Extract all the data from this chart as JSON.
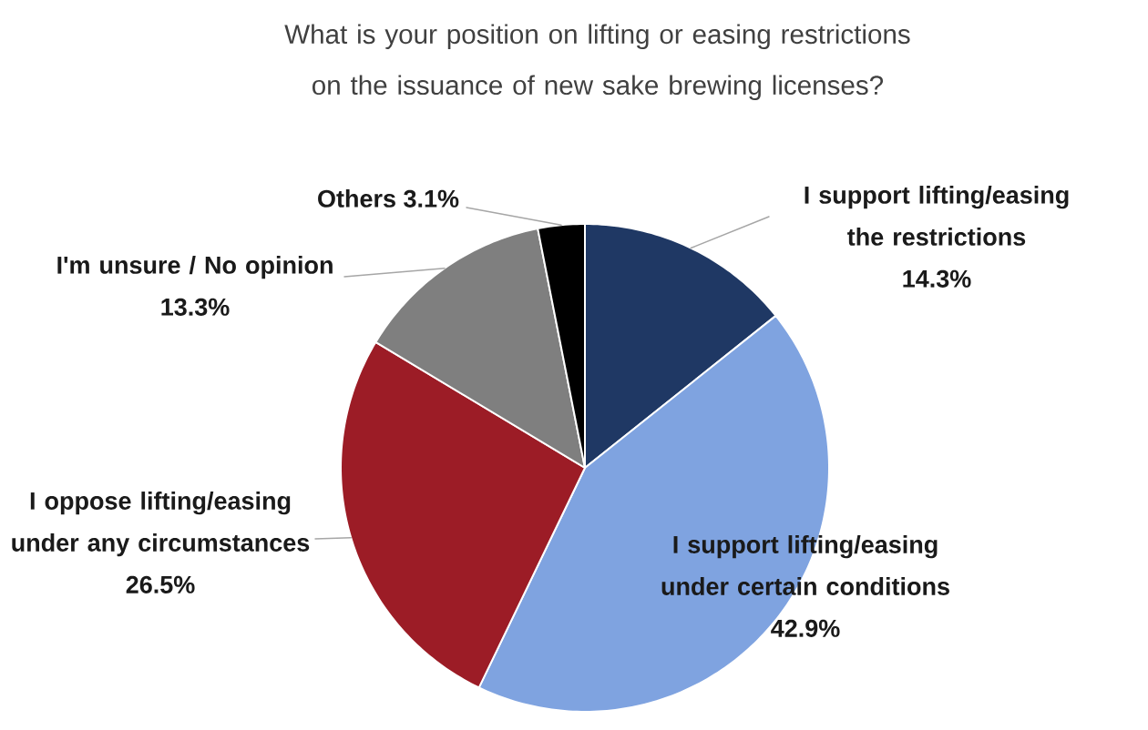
{
  "chart_data": {
    "type": "pie",
    "title": "What is your position on lifting or easing restrictions on the issuance of new sake brewing licenses?",
    "categories": [
      "I support lifting/easing the restrictions",
      "I support lifting/easing under certain conditions",
      "I oppose lifting/easing under any circumstances",
      "I'm unsure / No opinion",
      "Others"
    ],
    "values": [
      14.3,
      42.9,
      26.5,
      13.3,
      3.1
    ],
    "colors": [
      "#1f3864",
      "#7fa3e0",
      "#9c1c26",
      "#7f7f7f",
      "#000000"
    ],
    "value_labels": [
      "14.3%",
      "42.9%",
      "26.5%",
      "13.3%",
      "3.1%"
    ]
  }
}
